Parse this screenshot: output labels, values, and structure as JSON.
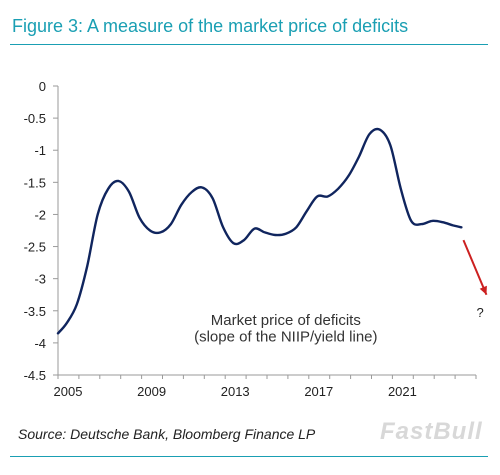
{
  "figure": {
    "title": "Figure 3: A measure of the market price of deficits",
    "source": "Source: Deutsche Bank, Bloomberg Finance LP",
    "watermark": "FastBull"
  },
  "colors": {
    "title": "#1a9fb3",
    "line": "#10255e",
    "arrow": "#cc2020",
    "axis": "#9a9a9a"
  },
  "chart_data": {
    "type": "line",
    "title": "",
    "xlabel": "",
    "ylabel": "",
    "x_ticks": [
      "2005",
      "2009",
      "2013",
      "2017",
      "2021"
    ],
    "y_ticks": [
      "0",
      "-0.5",
      "-1",
      "-1.5",
      "-2",
      "-2.5",
      "-3",
      "-3.5",
      "-4",
      "-4.5"
    ],
    "xlim": [
      2005,
      2025
    ],
    "ylim": [
      -4.5,
      0
    ],
    "grid": false,
    "annotation": [
      "Market price of deficits",
      "(slope of the NIIP/yield line)"
    ],
    "projection_label": "?",
    "series": [
      {
        "name": "",
        "x": [
          2005.0,
          2005.4,
          2005.9,
          2006.4,
          2006.9,
          2007.4,
          2007.9,
          2008.4,
          2008.9,
          2009.4,
          2009.9,
          2010.4,
          2010.9,
          2011.4,
          2011.9,
          2012.4,
          2012.9,
          2013.4,
          2013.9,
          2014.4,
          2014.9,
          2015.4,
          2015.9,
          2016.4,
          2016.9,
          2017.4,
          2017.9,
          2018.4,
          2018.9,
          2019.4,
          2019.9,
          2020.4,
          2020.9,
          2021.4,
          2021.9,
          2022.4,
          2022.9,
          2023.4,
          2023.9,
          2024.3
        ],
        "y": [
          -3.85,
          -3.7,
          -3.4,
          -2.8,
          -2.0,
          -1.6,
          -1.48,
          -1.65,
          -2.05,
          -2.25,
          -2.28,
          -2.15,
          -1.85,
          -1.65,
          -1.58,
          -1.75,
          -2.2,
          -2.45,
          -2.4,
          -2.22,
          -2.28,
          -2.32,
          -2.3,
          -2.2,
          -1.95,
          -1.72,
          -1.72,
          -1.6,
          -1.4,
          -1.1,
          -0.75,
          -0.68,
          -0.92,
          -1.6,
          -2.1,
          -2.15,
          -2.1,
          -2.12,
          -2.17,
          -2.2
        ]
      }
    ],
    "projection": {
      "from": [
        2024.4,
        -2.4
      ],
      "to": [
        2025.5,
        -3.25
      ]
    }
  }
}
